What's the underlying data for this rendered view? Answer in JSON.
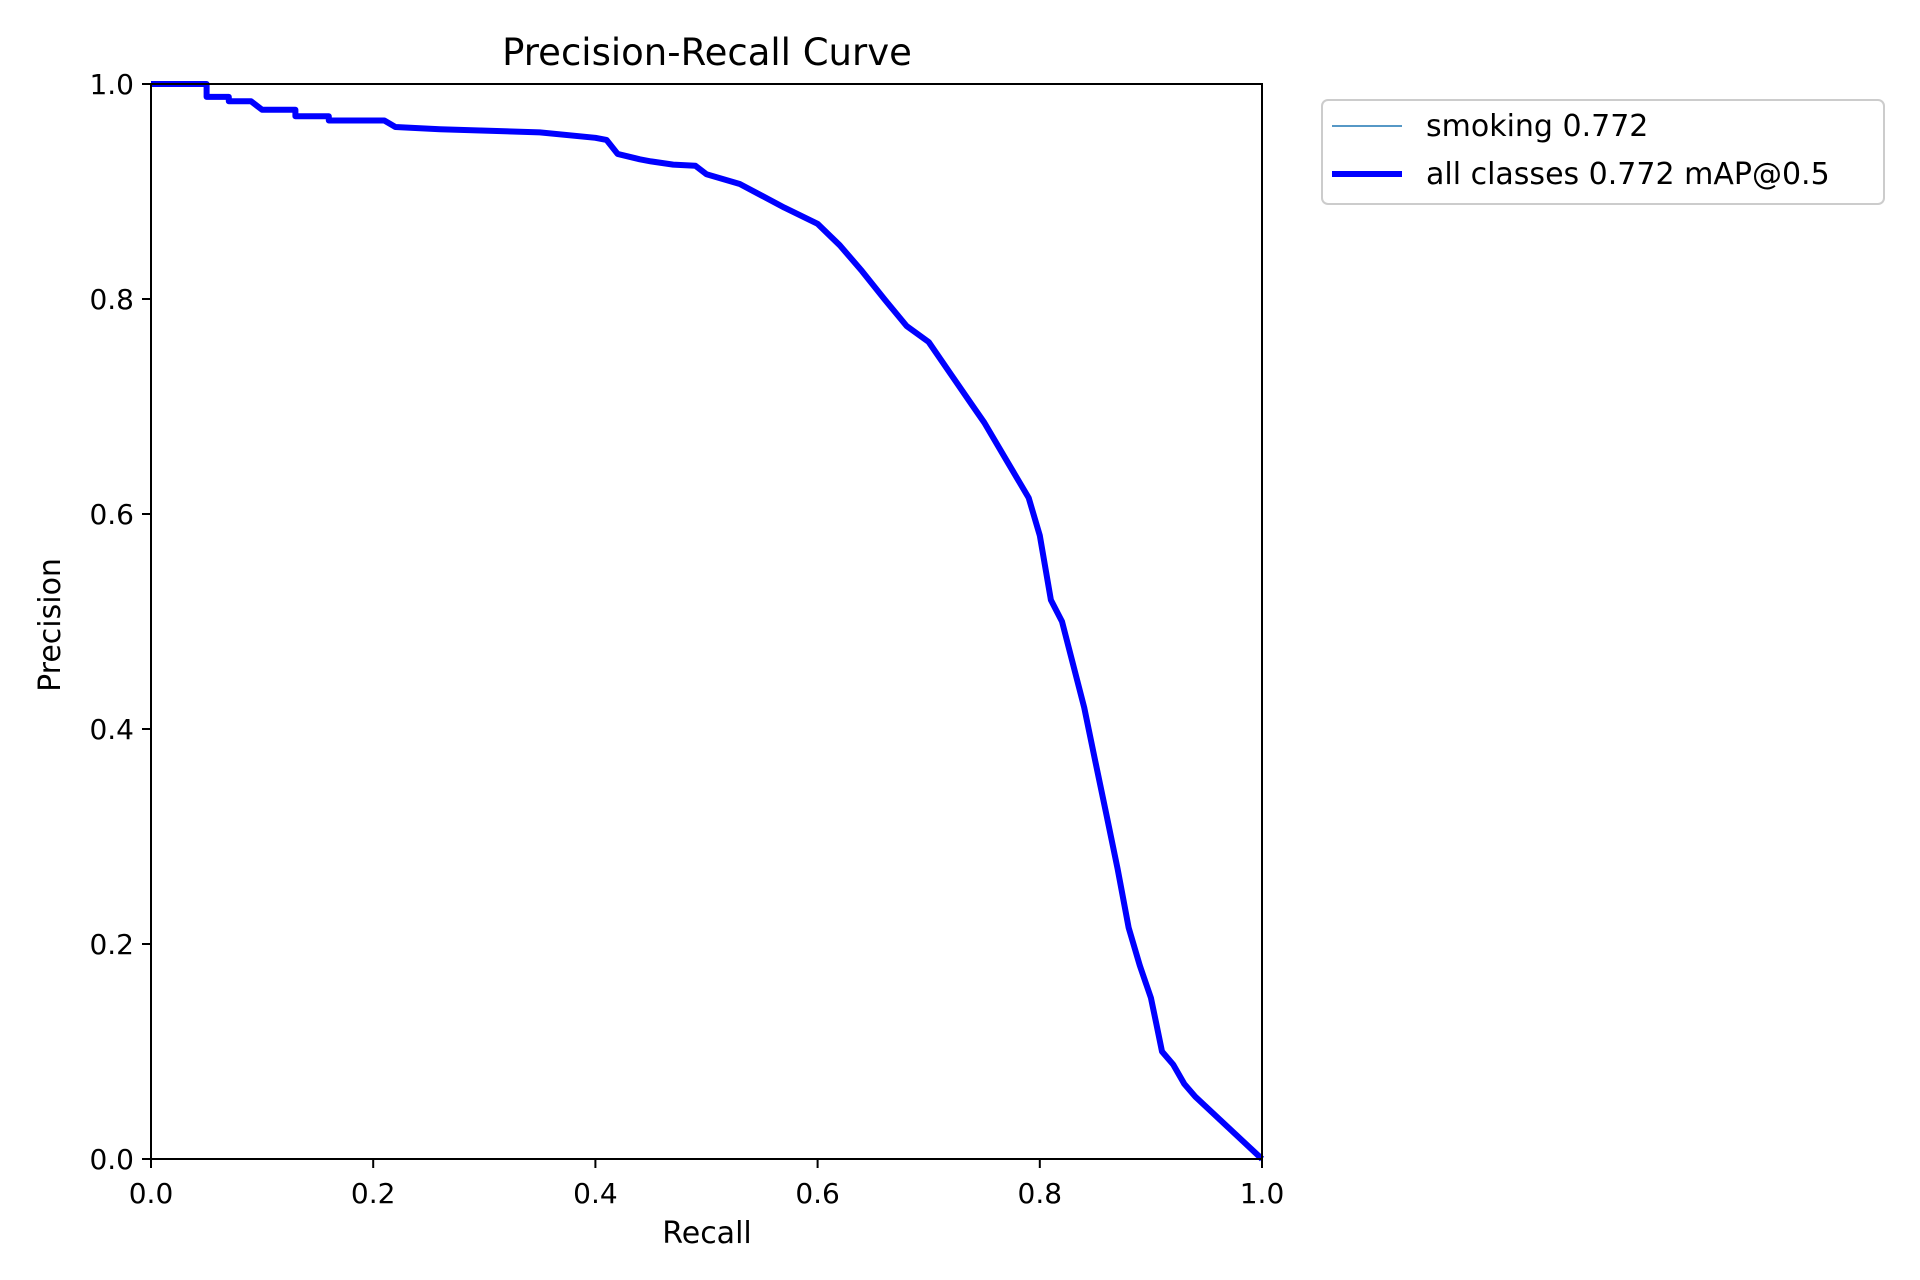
{
  "chart_data": {
    "type": "line",
    "title": "Precision-Recall Curve",
    "xlabel": "Recall",
    "ylabel": "Precision",
    "xlim": [
      0,
      1
    ],
    "ylim": [
      0,
      1
    ],
    "xticks": [
      "0.0",
      "0.2",
      "0.4",
      "0.6",
      "0.8",
      "1.0"
    ],
    "yticks": [
      "0.0",
      "0.2",
      "0.4",
      "0.6",
      "0.8",
      "1.0"
    ],
    "grid": false,
    "legend_position": "outside-top-right",
    "series": [
      {
        "name": "smoking 0.772",
        "color": "#1f77b4",
        "x": [
          0.0,
          0.05,
          0.05,
          0.07,
          0.07,
          0.09,
          0.1,
          0.13,
          0.13,
          0.16,
          0.16,
          0.21,
          0.22,
          0.26,
          0.35,
          0.4,
          0.41,
          0.42,
          0.44,
          0.45,
          0.47,
          0.49,
          0.5,
          0.53,
          0.55,
          0.57,
          0.6,
          0.62,
          0.64,
          0.66,
          0.68,
          0.7,
          0.72,
          0.74,
          0.75,
          0.77,
          0.79,
          0.8,
          0.81,
          0.82,
          0.83,
          0.84,
          0.85,
          0.86,
          0.87,
          0.88,
          0.89,
          0.9,
          0.905,
          0.91,
          0.92,
          0.93,
          0.94,
          1.0
        ],
        "y": [
          1.0,
          1.0,
          0.988,
          0.988,
          0.984,
          0.984,
          0.976,
          0.976,
          0.97,
          0.97,
          0.966,
          0.966,
          0.96,
          0.958,
          0.955,
          0.95,
          0.948,
          0.935,
          0.93,
          0.928,
          0.925,
          0.924,
          0.916,
          0.907,
          0.896,
          0.885,
          0.87,
          0.85,
          0.826,
          0.8,
          0.775,
          0.76,
          0.73,
          0.7,
          0.685,
          0.65,
          0.615,
          0.58,
          0.52,
          0.5,
          0.46,
          0.42,
          0.37,
          0.32,
          0.27,
          0.215,
          0.18,
          0.15,
          0.125,
          0.1,
          0.088,
          0.07,
          0.058,
          0.0
        ],
        "width": 1.5
      },
      {
        "name": "all classes 0.772 mAP@0.5",
        "color": "#0000ff",
        "x": [
          0.0,
          0.05,
          0.05,
          0.07,
          0.07,
          0.09,
          0.1,
          0.13,
          0.13,
          0.16,
          0.16,
          0.21,
          0.22,
          0.26,
          0.35,
          0.4,
          0.41,
          0.42,
          0.44,
          0.45,
          0.47,
          0.49,
          0.5,
          0.53,
          0.55,
          0.57,
          0.6,
          0.62,
          0.64,
          0.66,
          0.68,
          0.7,
          0.72,
          0.74,
          0.75,
          0.77,
          0.79,
          0.8,
          0.81,
          0.82,
          0.83,
          0.84,
          0.85,
          0.86,
          0.87,
          0.88,
          0.89,
          0.9,
          0.905,
          0.91,
          0.92,
          0.93,
          0.94,
          1.0
        ],
        "y": [
          1.0,
          1.0,
          0.988,
          0.988,
          0.984,
          0.984,
          0.976,
          0.976,
          0.97,
          0.97,
          0.966,
          0.966,
          0.96,
          0.958,
          0.955,
          0.95,
          0.948,
          0.935,
          0.93,
          0.928,
          0.925,
          0.924,
          0.916,
          0.907,
          0.896,
          0.885,
          0.87,
          0.85,
          0.826,
          0.8,
          0.775,
          0.76,
          0.73,
          0.7,
          0.685,
          0.65,
          0.615,
          0.58,
          0.52,
          0.5,
          0.46,
          0.42,
          0.37,
          0.32,
          0.27,
          0.215,
          0.18,
          0.15,
          0.125,
          0.1,
          0.088,
          0.07,
          0.058,
          0.0
        ],
        "width": 6
      }
    ]
  }
}
